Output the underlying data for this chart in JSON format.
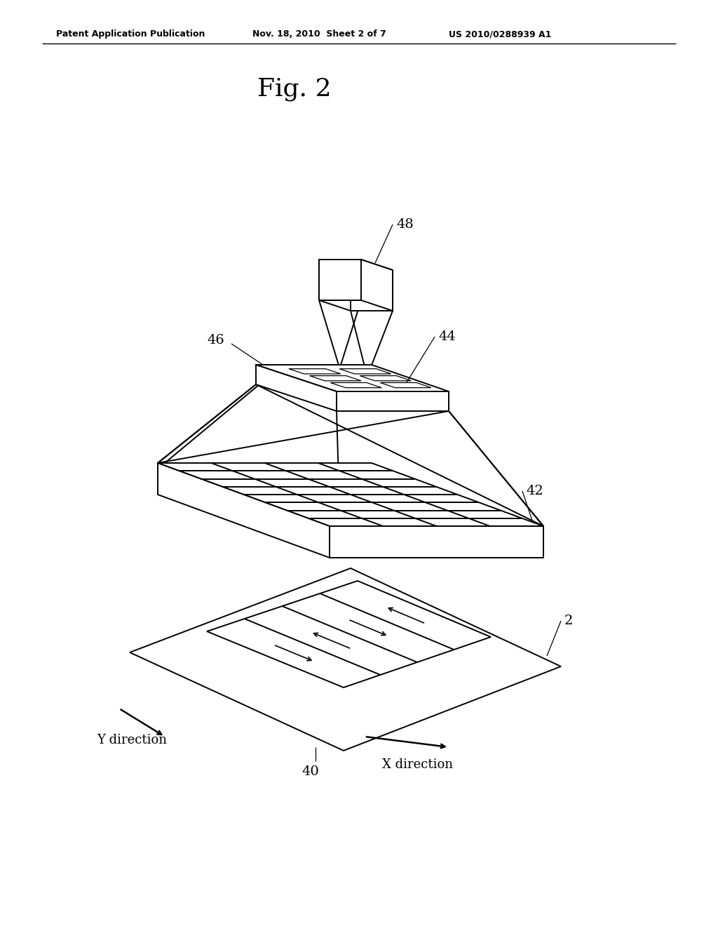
{
  "bg_color": "#ffffff",
  "line_color": "#000000",
  "title": "Fig. 2",
  "header_left": "Patent Application Publication",
  "header_mid": "Nov. 18, 2010  Sheet 2 of 7",
  "header_right": "US 2010/0288939 A1"
}
